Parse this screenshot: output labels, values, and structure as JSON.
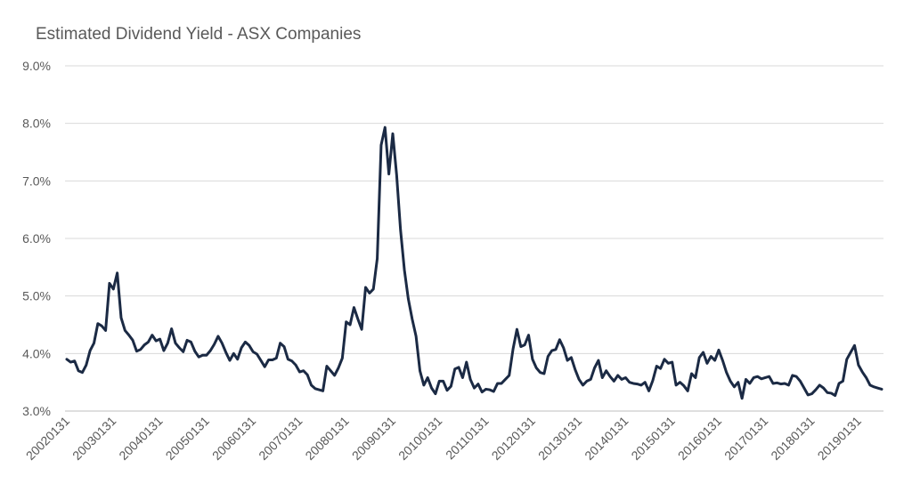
{
  "chart_data": {
    "type": "line",
    "title": "Estimated Dividend Yield - ASX Companies",
    "xlabel": "",
    "ylabel": "",
    "ylim": [
      3.0,
      9.0
    ],
    "y_ticks": [
      "3.0%",
      "4.0%",
      "5.0%",
      "6.0%",
      "7.0%",
      "8.0%",
      "9.0%"
    ],
    "x_ticks": [
      "20020131",
      "20030131",
      "20040131",
      "20050131",
      "20060131",
      "20070131",
      "20080131",
      "20090131",
      "20100131",
      "20110131",
      "20120131",
      "20130131",
      "20140131",
      "20150131",
      "20160131",
      "20170131",
      "20180131",
      "20190131"
    ],
    "grid": true,
    "line_color": "#1b2a44",
    "series": [
      {
        "values": [
          3.9,
          3.85,
          3.87,
          3.7,
          3.67,
          3.8,
          4.05,
          4.18,
          4.52,
          4.48,
          4.4,
          5.22,
          5.12,
          5.4,
          4.62,
          4.4,
          4.32,
          4.23,
          4.04,
          4.07,
          4.15,
          4.2,
          4.32,
          4.22,
          4.25,
          4.05,
          4.18,
          4.43,
          4.18,
          4.1,
          4.03,
          4.23,
          4.2,
          4.04,
          3.94,
          3.97,
          3.97,
          4.05,
          4.16,
          4.3,
          4.18,
          4.02,
          3.88,
          4.0,
          3.9,
          4.1,
          4.2,
          4.14,
          4.03,
          3.99,
          3.88,
          3.77,
          3.89,
          3.89,
          3.92,
          4.18,
          4.12,
          3.9,
          3.87,
          3.8,
          3.68,
          3.7,
          3.63,
          3.45,
          3.39,
          3.37,
          3.35,
          3.78,
          3.7,
          3.62,
          3.75,
          3.92,
          4.55,
          4.5,
          4.8,
          4.6,
          4.42,
          5.15,
          5.05,
          5.12,
          5.65,
          7.62,
          7.93,
          7.12,
          7.82,
          7.1,
          6.15,
          5.45,
          4.95,
          4.6,
          4.3,
          3.7,
          3.45,
          3.58,
          3.4,
          3.3,
          3.52,
          3.52,
          3.36,
          3.43,
          3.73,
          3.76,
          3.58,
          3.85,
          3.55,
          3.4,
          3.47,
          3.33,
          3.38,
          3.37,
          3.34,
          3.48,
          3.48,
          3.55,
          3.62,
          4.08,
          4.42,
          4.12,
          4.15,
          4.32,
          3.9,
          3.75,
          3.67,
          3.65,
          3.95,
          4.05,
          4.07,
          4.24,
          4.1,
          3.88,
          3.93,
          3.72,
          3.55,
          3.45,
          3.52,
          3.55,
          3.75,
          3.88,
          3.58,
          3.7,
          3.6,
          3.52,
          3.62,
          3.55,
          3.58,
          3.5,
          3.48,
          3.47,
          3.45,
          3.5,
          3.35,
          3.53,
          3.78,
          3.74,
          3.9,
          3.83,
          3.85,
          3.45,
          3.5,
          3.44,
          3.35,
          3.65,
          3.58,
          3.93,
          4.02,
          3.83,
          3.95,
          3.88,
          4.06,
          3.88,
          3.67,
          3.52,
          3.42,
          3.5,
          3.22,
          3.55,
          3.48,
          3.58,
          3.6,
          3.56,
          3.58,
          3.6,
          3.48,
          3.49,
          3.47,
          3.48,
          3.45,
          3.62,
          3.6,
          3.52,
          3.4,
          3.28,
          3.3,
          3.37,
          3.45,
          3.4,
          3.32,
          3.31,
          3.27,
          3.48,
          3.52,
          3.9,
          4.02,
          4.14,
          3.8,
          3.68,
          3.58,
          3.45,
          3.42,
          3.4,
          3.38
        ]
      }
    ]
  }
}
